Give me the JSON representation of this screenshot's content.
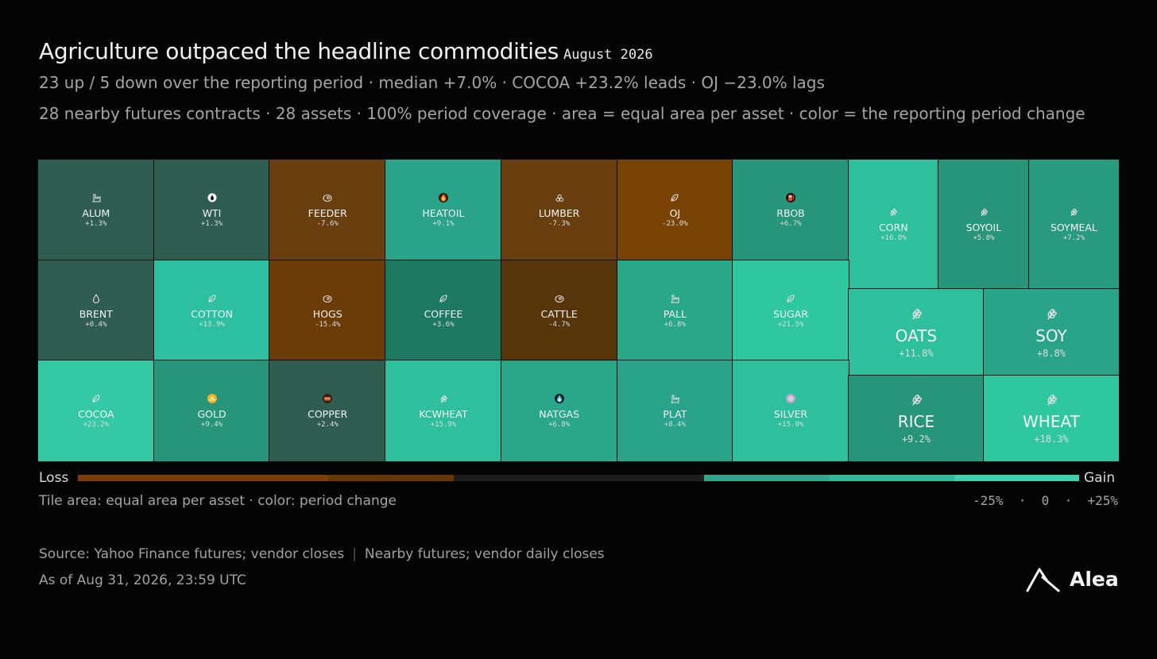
{
  "title": "Agriculture outpaced the headline commodities",
  "period": "August 2026",
  "subtitle": "23 up / 5 down over the reporting period · median +7.0% · COCOA +23.2% leads · OJ −23.0% lags",
  "description": "28 nearby futures contracts · 28 assets · 100% period coverage · area = equal area per asset · color = the reporting period change",
  "legend": {
    "loss_label": "Loss",
    "gain_label": "Gain",
    "note": "Tile area: equal area per asset · color: period change",
    "scale": "-25%  ·  0  ·  +25%",
    "colors": [
      "#7a3f06",
      "#7a3f06",
      "#663706",
      "#1e1e1e",
      "#1e1e1e",
      "#31a78c",
      "#31b897",
      "#3dd1ad"
    ]
  },
  "source": {
    "left": "Source: Yahoo Finance futures; vendor closes",
    "right": "Nearby futures; vendor daily closes"
  },
  "as_of": "As of Aug 31, 2026, 23:59 UTC",
  "brand": "Alea",
  "chart_data": {
    "type": "treemap",
    "value_unit": "% change over period",
    "color_scale": {
      "min": -25,
      "max": 25
    },
    "assets": [
      {
        "name": "ALUM",
        "change": "+1.3%",
        "value": 1.3,
        "icon": "factory-icon",
        "color": "#2f5e51"
      },
      {
        "name": "WTI",
        "change": "+1.3%",
        "value": 1.3,
        "icon": "oil-drop-icon",
        "color": "#2f5e51"
      },
      {
        "name": "FEEDER",
        "change": "-7.6%",
        "value": -7.6,
        "icon": "steak-icon",
        "color": "#6a3f10"
      },
      {
        "name": "HEATOIL",
        "change": "+9.1%",
        "value": 9.1,
        "icon": "flame-icon",
        "color": "#29a389"
      },
      {
        "name": "LUMBER",
        "change": "-7.3%",
        "value": -7.3,
        "icon": "log-pile-icon",
        "color": "#6a3f10"
      },
      {
        "name": "OJ",
        "change": "-23.0%",
        "value": -23.0,
        "icon": "leaf-icon",
        "color": "#7a4306"
      },
      {
        "name": "RBOB",
        "change": "+6.7%",
        "value": 6.7,
        "icon": "fuel-pump-icon",
        "color": "#27957a"
      },
      {
        "name": "CORN",
        "change": "+16.8%",
        "value": 16.8,
        "icon": "grain-icon",
        "color": "#2ebf9c"
      },
      {
        "name": "SOYOIL",
        "change": "+5.8%",
        "value": 5.8,
        "icon": "grain-icon",
        "color": "#27957a"
      },
      {
        "name": "SOYMEAL",
        "change": "+7.2%",
        "value": 7.2,
        "icon": "grain-icon",
        "color": "#289a80"
      },
      {
        "name": "BRENT",
        "change": "+0.4%",
        "value": 0.4,
        "icon": "drop-outline-icon",
        "color": "#2f5e51"
      },
      {
        "name": "COTTON",
        "change": "+13.9%",
        "value": 13.9,
        "icon": "leaf-icon",
        "color": "#2dc0a0"
      },
      {
        "name": "HOGS",
        "change": "-15.4%",
        "value": -15.4,
        "icon": "steak-icon",
        "color": "#6c3c08"
      },
      {
        "name": "COFFEE",
        "change": "+3.6%",
        "value": 3.6,
        "icon": "leaf-icon",
        "color": "#1d7a60"
      },
      {
        "name": "CATTLE",
        "change": "-4.7%",
        "value": -4.7,
        "icon": "steak-icon",
        "color": "#553509"
      },
      {
        "name": "PALL",
        "change": "+6.8%",
        "value": 6.8,
        "icon": "factory-icon",
        "color": "#2aa689"
      },
      {
        "name": "SUGAR",
        "change": "+21.5%",
        "value": 21.5,
        "icon": "leaf-icon",
        "color": "#2ec7a0"
      },
      {
        "name": "OATS",
        "change": "+11.8%",
        "value": 11.8,
        "icon": "grain-icon",
        "color": "#2ec09d"
      },
      {
        "name": "SOY",
        "change": "+8.8%",
        "value": 8.8,
        "icon": "grain-icon",
        "color": "#29a489"
      },
      {
        "name": "COCOA",
        "change": "+23.2%",
        "value": 23.2,
        "icon": "leaf-icon",
        "color": "#34c9a4"
      },
      {
        "name": "GOLD",
        "change": "+9.4%",
        "value": 9.4,
        "icon": "gold-bars-icon",
        "color": "#27957a"
      },
      {
        "name": "COPPER",
        "change": "+2.4%",
        "value": 2.4,
        "icon": "copper-ingot-icon",
        "color": "#2f5e51"
      },
      {
        "name": "KCWHEAT",
        "change": "+15.9%",
        "value": 15.9,
        "icon": "grain-icon",
        "color": "#2ec09d"
      },
      {
        "name": "NATGAS",
        "change": "+6.8%",
        "value": 6.8,
        "icon": "gas-flame-icon",
        "color": "#2aa689"
      },
      {
        "name": "PLAT",
        "change": "+8.4%",
        "value": 8.4,
        "icon": "factory-icon",
        "color": "#29a389"
      },
      {
        "name": "SILVER",
        "change": "+15.0%",
        "value": 15.0,
        "icon": "silver-coin-icon",
        "color": "#2ec09d"
      },
      {
        "name": "RICE",
        "change": "+9.2%",
        "value": 9.2,
        "icon": "grain-icon",
        "color": "#27957a"
      },
      {
        "name": "WHEAT",
        "change": "+18.3%",
        "value": 18.3,
        "icon": "grain-icon",
        "color": "#2ec7a0"
      }
    ]
  }
}
